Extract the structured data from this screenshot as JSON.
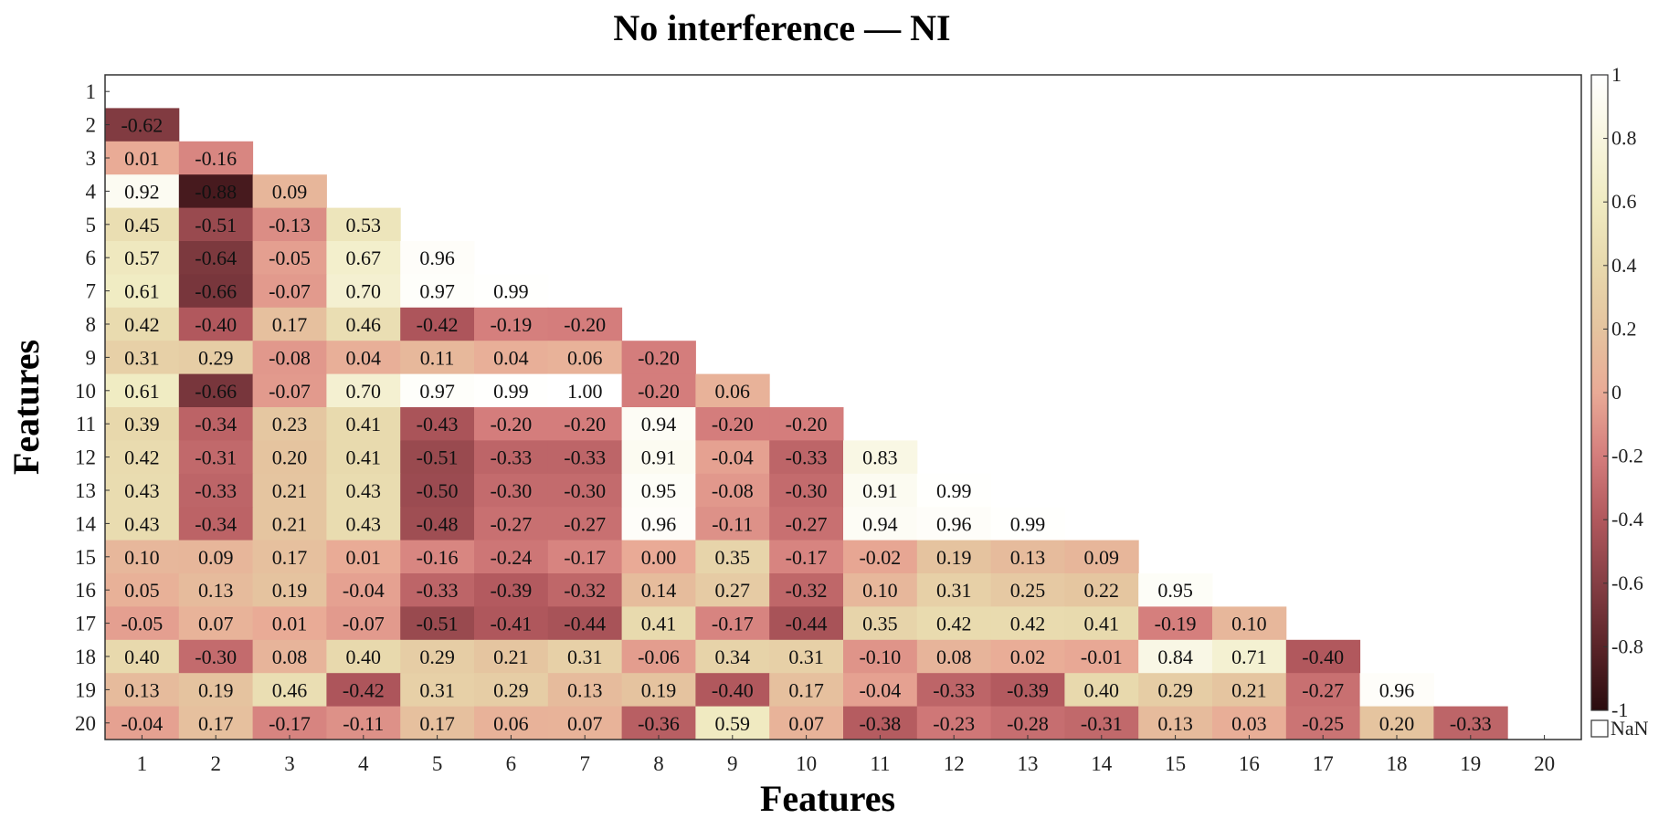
{
  "chart_data": {
    "type": "heatmap",
    "title": "No interference — NI",
    "xlabel": "Features",
    "ylabel": "Features",
    "x_categories": [
      "1",
      "2",
      "3",
      "4",
      "5",
      "6",
      "7",
      "8",
      "9",
      "10",
      "11",
      "12",
      "13",
      "14",
      "15",
      "16",
      "17",
      "18",
      "19",
      "20"
    ],
    "y_categories": [
      "1",
      "2",
      "3",
      "4",
      "5",
      "6",
      "7",
      "8",
      "9",
      "10",
      "11",
      "12",
      "13",
      "14",
      "15",
      "16",
      "17",
      "18",
      "19",
      "20"
    ],
    "matrix_layout": "lower-triangular (row i lists values for columns 1..i-1)",
    "rows": [
      [],
      [
        -0.62
      ],
      [
        0.01,
        -0.16
      ],
      [
        0.92,
        -0.88,
        0.09
      ],
      [
        0.45,
        -0.51,
        -0.13,
        0.53
      ],
      [
        0.57,
        -0.64,
        -0.05,
        0.67,
        0.96
      ],
      [
        0.61,
        -0.66,
        -0.07,
        0.7,
        0.97,
        0.99
      ],
      [
        0.42,
        -0.4,
        0.17,
        0.46,
        -0.42,
        -0.19,
        -0.2
      ],
      [
        0.31,
        0.29,
        -0.08,
        0.04,
        0.11,
        0.04,
        0.06,
        -0.2
      ],
      [
        0.61,
        -0.66,
        -0.07,
        0.7,
        0.97,
        0.99,
        1.0,
        -0.2,
        0.06
      ],
      [
        0.39,
        -0.34,
        0.23,
        0.41,
        -0.43,
        -0.2,
        -0.2,
        0.94,
        -0.2,
        -0.2
      ],
      [
        0.42,
        -0.31,
        0.2,
        0.41,
        -0.51,
        -0.33,
        -0.33,
        0.91,
        -0.04,
        -0.33,
        0.83
      ],
      [
        0.43,
        -0.33,
        0.21,
        0.43,
        -0.5,
        -0.3,
        -0.3,
        0.95,
        -0.08,
        -0.3,
        0.91,
        0.99
      ],
      [
        0.43,
        -0.34,
        0.21,
        0.43,
        -0.48,
        -0.27,
        -0.27,
        0.96,
        -0.11,
        -0.27,
        0.94,
        0.96,
        0.99
      ],
      [
        0.1,
        0.09,
        0.17,
        0.01,
        -0.16,
        -0.24,
        -0.17,
        0.0,
        0.35,
        -0.17,
        -0.02,
        0.19,
        0.13,
        0.09
      ],
      [
        0.05,
        0.13,
        0.19,
        -0.04,
        -0.33,
        -0.39,
        -0.32,
        0.14,
        0.27,
        -0.32,
        0.1,
        0.31,
        0.25,
        0.22,
        0.95
      ],
      [
        -0.05,
        0.07,
        0.01,
        -0.07,
        -0.51,
        -0.41,
        -0.44,
        0.41,
        -0.17,
        -0.44,
        0.35,
        0.42,
        0.42,
        0.41,
        -0.19,
        0.1
      ],
      [
        0.4,
        -0.3,
        0.08,
        0.4,
        0.29,
        0.21,
        0.31,
        -0.06,
        0.34,
        0.31,
        -0.1,
        0.08,
        0.02,
        -0.01,
        0.84,
        0.71,
        -0.4
      ],
      [
        0.13,
        0.19,
        0.46,
        -0.42,
        0.31,
        0.29,
        0.13,
        0.19,
        -0.4,
        0.17,
        -0.04,
        -0.33,
        -0.39,
        0.4,
        0.29,
        0.21,
        -0.27,
        0.96
      ],
      [
        -0.04,
        0.17,
        -0.17,
        -0.11,
        0.17,
        0.06,
        0.07,
        -0.36,
        0.59,
        0.07,
        -0.38,
        -0.23,
        -0.28,
        -0.31,
        0.13,
        0.03,
        -0.25,
        0.2,
        -0.33
      ]
    ],
    "value_range": [
      -1,
      1
    ],
    "colorbar": {
      "ticks": [
        "1",
        "0.8",
        "0.6",
        "0.4",
        "0.2",
        "0",
        "-0.2",
        "-0.4",
        "-0.6",
        "-0.8",
        "-1"
      ],
      "nan_label": "NaN",
      "placement": "right"
    },
    "colormap": {
      "stops": [
        [
          -1.0,
          "#2a0c0e"
        ],
        [
          -0.8,
          "#5a2428"
        ],
        [
          -0.6,
          "#853e44"
        ],
        [
          -0.4,
          "#b1585d"
        ],
        [
          -0.2,
          "#d47d7c"
        ],
        [
          0.0,
          "#e9aa96"
        ],
        [
          0.2,
          "#e5c49f"
        ],
        [
          0.4,
          "#e8d9ad"
        ],
        [
          0.6,
          "#f0ebc2"
        ],
        [
          0.8,
          "#f8f5df"
        ],
        [
          1.0,
          "#ffffff"
        ]
      ]
    },
    "grid": false
  }
}
